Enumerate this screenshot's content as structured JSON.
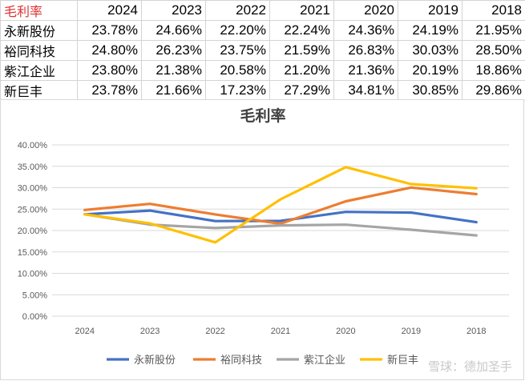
{
  "table": {
    "header": [
      "毛利率",
      "2024",
      "2023",
      "2022",
      "2021",
      "2020",
      "2019",
      "2018"
    ],
    "rows": [
      [
        "永新股份",
        "23.78%",
        "24.66%",
        "22.20%",
        "22.24%",
        "24.36%",
        "24.19%",
        "21.95%"
      ],
      [
        "裕同科技",
        "24.80%",
        "26.23%",
        "23.75%",
        "21.59%",
        "26.83%",
        "30.03%",
        "28.50%"
      ],
      [
        "紫江企业",
        "23.80%",
        "21.38%",
        "20.58%",
        "21.20%",
        "21.36%",
        "20.19%",
        "18.86%"
      ],
      [
        "新巨丰",
        "23.78%",
        "21.66%",
        "17.23%",
        "27.29%",
        "34.81%",
        "30.85%",
        "29.86%"
      ]
    ]
  },
  "watermark": "雪球：德加圣手",
  "chart_data": {
    "type": "line",
    "title": "毛利率",
    "categories": [
      "2024",
      "2023",
      "2022",
      "2021",
      "2020",
      "2019",
      "2018"
    ],
    "series": [
      {
        "name": "永新股份",
        "color": "#4472C4",
        "values": [
          23.78,
          24.66,
          22.2,
          22.24,
          24.36,
          24.19,
          21.95
        ]
      },
      {
        "name": "裕同科技",
        "color": "#ED7D31",
        "values": [
          24.8,
          26.23,
          23.75,
          21.59,
          26.83,
          30.03,
          28.5
        ]
      },
      {
        "name": "紫江企业",
        "color": "#A5A5A5",
        "values": [
          23.8,
          21.38,
          20.58,
          21.2,
          21.36,
          20.19,
          18.86
        ]
      },
      {
        "name": "新巨丰",
        "color": "#FFC000",
        "values": [
          23.78,
          21.66,
          17.23,
          27.29,
          34.81,
          30.85,
          29.86
        ]
      }
    ],
    "y_ticks": [
      "0.00%",
      "5.00%",
      "10.00%",
      "15.00%",
      "20.00%",
      "25.00%",
      "30.00%",
      "35.00%",
      "40.00%"
    ],
    "ylim": [
      0,
      40
    ],
    "grid": true,
    "legend_position": "bottom"
  }
}
